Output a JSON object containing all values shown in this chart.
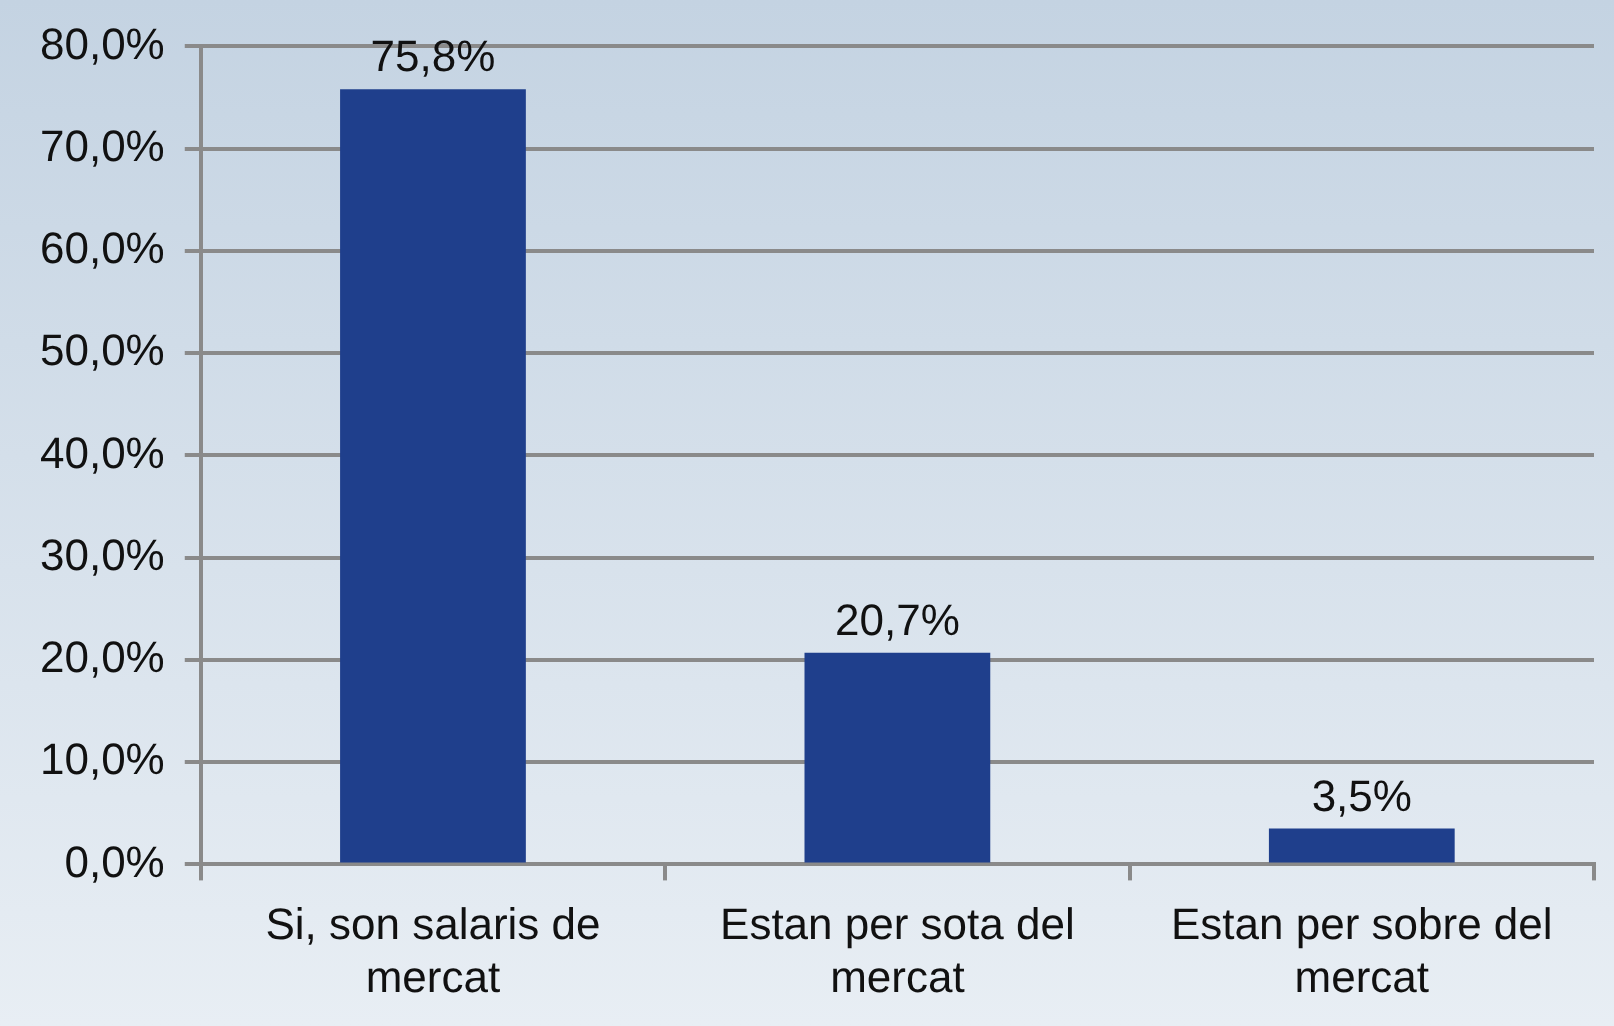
{
  "chart_data": {
    "type": "bar",
    "categories": [
      "Si, son salaris de mercat",
      "Estan per sota del mercat",
      "Estan per sobre del mercat"
    ],
    "values": [
      75.8,
      20.7,
      3.5
    ],
    "value_labels": [
      "75,8%",
      "20,7%",
      "3,5%"
    ],
    "color": "#1f3f8c",
    "ylim": [
      0,
      80
    ],
    "yticks": [
      {
        "value": 0,
        "label": "0,0%"
      },
      {
        "value": 10,
        "label": "10,0%"
      },
      {
        "value": 20,
        "label": "20,0%"
      },
      {
        "value": 30,
        "label": "30,0%"
      },
      {
        "value": 40,
        "label": "40,0%"
      },
      {
        "value": 50,
        "label": "50,0%"
      },
      {
        "value": 60,
        "label": "60,0%"
      },
      {
        "value": 70,
        "label": "70,0%"
      },
      {
        "value": 80,
        "label": "80,0%"
      }
    ],
    "grid": "y",
    "legend": false
  }
}
